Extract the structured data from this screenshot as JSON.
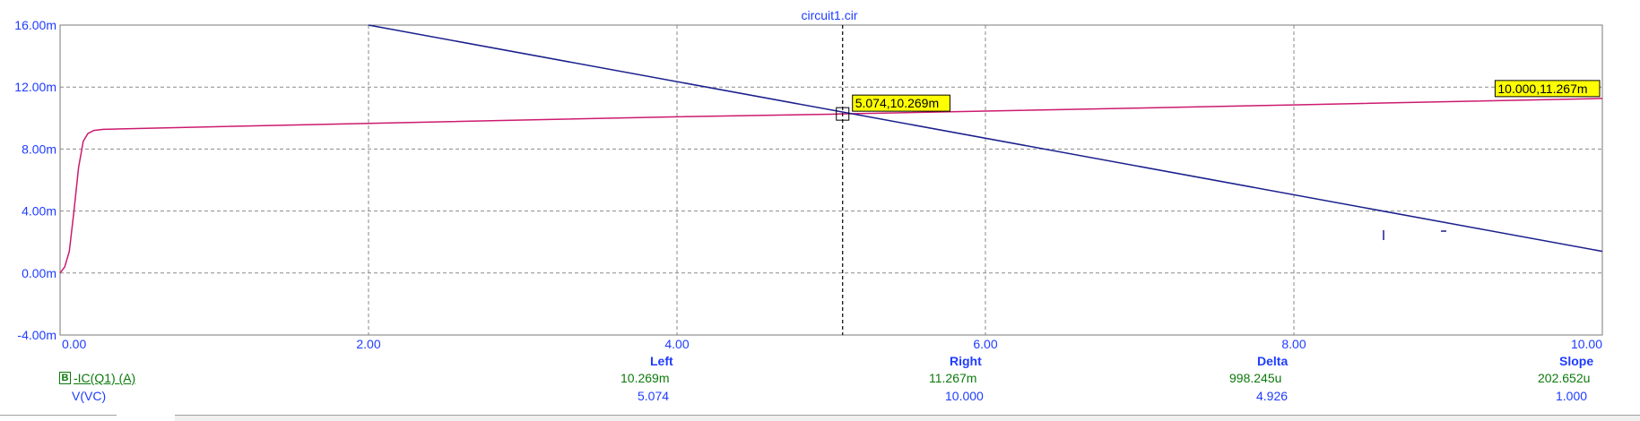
{
  "chart_data": {
    "type": "line",
    "title": "circuit1.cir",
    "xlim": [
      0,
      10
    ],
    "ylim": [
      -4.0,
      16.0
    ],
    "x_ticks": [
      "0.00",
      "2.00",
      "4.00",
      "6.00",
      "8.00",
      "10.00"
    ],
    "x_tick_values": [
      0,
      2,
      4,
      6,
      8,
      10
    ],
    "y_ticks": [
      "16.00m",
      "12.00m",
      "8.00m",
      "4.00m",
      "0.00m",
      "-4.00m"
    ],
    "y_tick_values": [
      16,
      12,
      8,
      4,
      0,
      -4
    ],
    "grid": true,
    "series": [
      {
        "name": "-IC(Q1) (A)",
        "color": "#cc1a6e",
        "x": [
          0,
          0.03,
          0.06,
          0.09,
          0.12,
          0.15,
          0.18,
          0.22,
          0.28,
          0.4,
          1,
          2,
          3,
          4,
          5,
          5.074,
          6,
          7,
          8,
          9,
          10
        ],
        "values": [
          0,
          0.4,
          1.4,
          4.0,
          6.8,
          8.5,
          9.0,
          9.2,
          9.27,
          9.3,
          9.44,
          9.66,
          9.87,
          10.08,
          10.25,
          10.269,
          10.45,
          10.65,
          10.85,
          11.06,
          11.267
        ]
      },
      {
        "name": "",
        "color": "#1a1f8c",
        "x": [
          2.0,
          10
        ],
        "values": [
          16.0,
          1.4
        ]
      }
    ],
    "cursor": {
      "x": 5.074,
      "y": 10.269,
      "label": "5.074,10.269m"
    },
    "end_label": {
      "x": 10.0,
      "y": 11.267,
      "label": "10.000,11.267m"
    }
  },
  "table": {
    "headers": {
      "left": "Left",
      "right": "Right",
      "delta": "Delta",
      "slope": "Slope"
    },
    "rows": [
      {
        "marker": "B",
        "name": "-IC(Q1) (A)",
        "left": "10.269m",
        "right": "11.267m",
        "delta": "998.245u",
        "slope": "202.652u",
        "color": "#0a7a0a"
      },
      {
        "marker": "",
        "name": "V(VC)",
        "left": "5.074",
        "right": "10.000",
        "delta": "4.926",
        "slope": "1.000",
        "color": "#1e3cff"
      }
    ]
  },
  "colors": {
    "accent": "#1e3cff",
    "label_bg": "#ffff00",
    "grid": "#8a8a8a"
  }
}
